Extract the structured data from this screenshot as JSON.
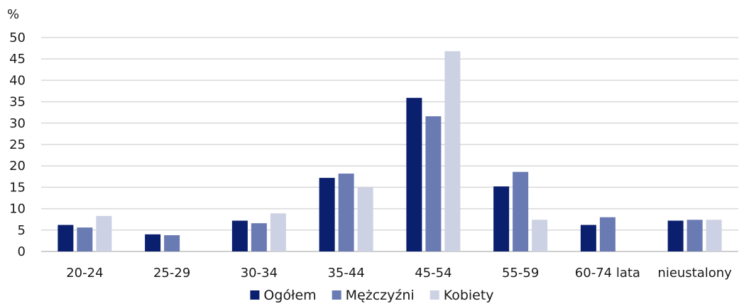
{
  "chart_data": {
    "type": "bar",
    "unit_label": "%",
    "categories": [
      "20-24",
      "25-29",
      "30-34",
      "35-44",
      "45-54",
      "55-59",
      "60-74 lata",
      "nieustalony"
    ],
    "series": [
      {
        "name": "Ogółem",
        "color": "#0a1f6e",
        "values": [
          6.2,
          4.0,
          7.2,
          17.2,
          35.9,
          15.2,
          6.2,
          7.2
        ]
      },
      {
        "name": "Mężczyźni",
        "color": "#6a7bb3",
        "values": [
          5.6,
          3.8,
          6.6,
          18.2,
          31.6,
          18.6,
          8.0,
          7.4
        ]
      },
      {
        "name": "Kobiety",
        "color": "#ccd1e3",
        "values": [
          8.3,
          null,
          8.9,
          15.0,
          46.8,
          7.4,
          null,
          7.4
        ]
      }
    ],
    "ylim": [
      0,
      50
    ],
    "yticks": [
      0,
      5,
      10,
      15,
      20,
      25,
      30,
      35,
      40,
      45,
      50
    ],
    "grid": true,
    "legend_position": "bottom"
  }
}
